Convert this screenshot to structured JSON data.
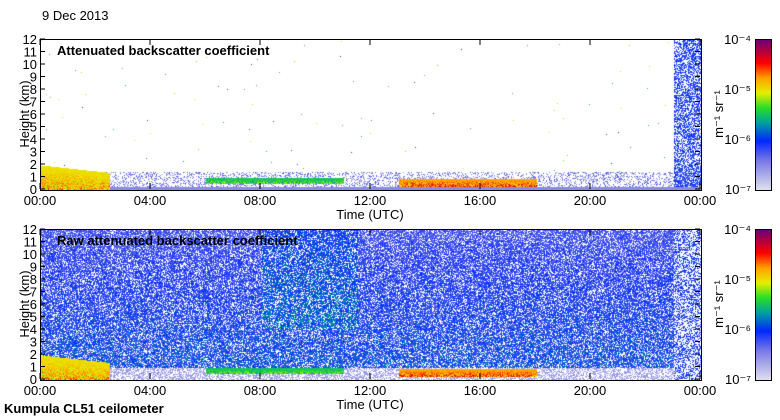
{
  "date_label": "9 Dec 2013",
  "footer": "Kumpula CL51 ceilometer",
  "chart_data": [
    {
      "type": "heatmap",
      "title": "Attenuated backscatter coefficient",
      "xlabel": "Time (UTC)",
      "ylabel": "Height (km)",
      "xlim": [
        0,
        24
      ],
      "ylim": [
        0,
        12
      ],
      "xticks": [
        "00:00",
        "04:00",
        "08:00",
        "12:00",
        "16:00",
        "20:00",
        "00:00"
      ],
      "yticks": [
        "0",
        "1",
        "2",
        "3",
        "4",
        "5",
        "6",
        "7",
        "8",
        "9",
        "10",
        "11",
        "12"
      ],
      "colorbar": {
        "label": "m⁻¹ sr⁻¹",
        "ticks": [
          "10⁻⁷",
          "10⁻⁶",
          "10⁻⁵",
          "10⁻⁴"
        ],
        "range_log10": [
          -7,
          -4
        ]
      },
      "features": [
        {
          "desc": "low cloud",
          "t": [
            0,
            2.5
          ],
          "h": [
            0,
            2
          ],
          "log10": -5
        },
        {
          "desc": "cloud layer",
          "t": [
            6,
            11
          ],
          "h": [
            0.5,
            1
          ],
          "log10": -5.5
        },
        {
          "desc": "cloud layer",
          "t": [
            13,
            18
          ],
          "h": [
            0.3,
            0.9
          ],
          "log10": -4.8
        },
        {
          "desc": "noise column",
          "t": [
            23,
            24
          ],
          "h": [
            0,
            12
          ],
          "log10": -6.3
        }
      ]
    },
    {
      "type": "heatmap",
      "title": "Raw attenuated backscatter coefficient",
      "xlabel": "Time (UTC)",
      "ylabel": "Height (km)",
      "xlim": [
        0,
        24
      ],
      "ylim": [
        0,
        12
      ],
      "xticks": [
        "00:00",
        "04:00",
        "08:00",
        "12:00",
        "16:00",
        "20:00",
        "00:00"
      ],
      "yticks": [
        "0",
        "1",
        "2",
        "3",
        "4",
        "5",
        "6",
        "7",
        "8",
        "9",
        "10",
        "11",
        "12"
      ],
      "colorbar": {
        "label": "m⁻¹ sr⁻¹",
        "ticks": [
          "10⁻⁷",
          "10⁻⁶",
          "10⁻⁵",
          "10⁻⁴"
        ],
        "range_log10": [
          -7,
          -4
        ]
      },
      "features": [
        {
          "desc": "low cloud",
          "t": [
            0,
            2.5
          ],
          "h": [
            0,
            2
          ],
          "log10": -5
        },
        {
          "desc": "cloud layer",
          "t": [
            6,
            11
          ],
          "h": [
            0.5,
            1
          ],
          "log10": -5.5
        },
        {
          "desc": "cloud layer",
          "t": [
            13,
            18
          ],
          "h": [
            0.3,
            0.9
          ],
          "log10": -4.8
        },
        {
          "desc": "noise background",
          "t": [
            0,
            23
          ],
          "h": [
            1,
            12
          ],
          "log10": -5.8
        }
      ]
    }
  ]
}
